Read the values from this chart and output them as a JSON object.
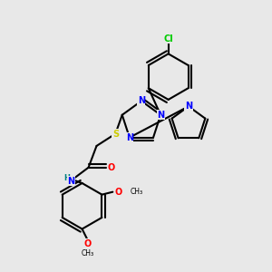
{
  "background_color": "#e8e8e8",
  "atom_colors": {
    "N": "#0000ff",
    "O": "#ff0000",
    "S": "#cccc00",
    "Cl": "#00cc00",
    "C": "#000000",
    "H": "#008080"
  },
  "bond_color": "#000000",
  "bond_width": 1.5,
  "figsize": [
    3.0,
    3.0
  ],
  "dpi": 100
}
